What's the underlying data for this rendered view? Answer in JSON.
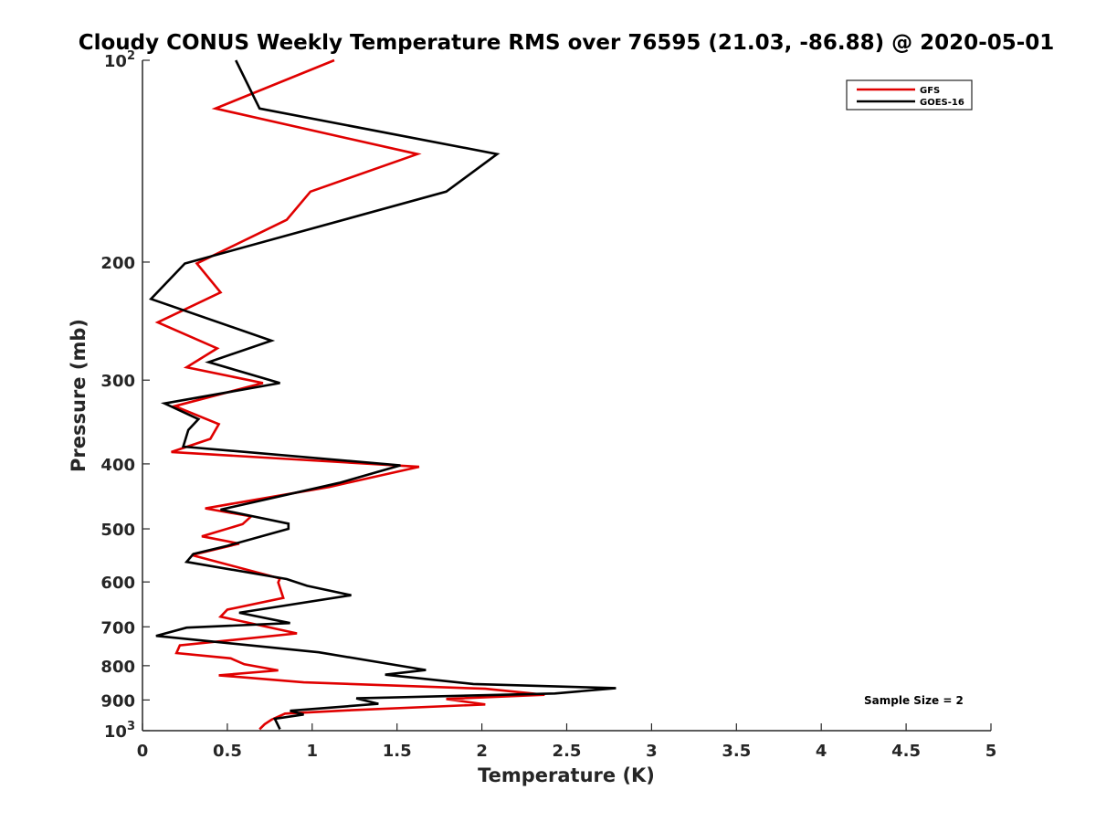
{
  "chart_data": {
    "type": "line",
    "title": "Cloudy CONUS Weekly Temperature RMS over 76595 (21.03, -86.88) @ 2020-05-01",
    "xlabel": "Temperature (K)",
    "ylabel": "Pressure (mb)",
    "xlim": [
      0,
      5
    ],
    "ylim": [
      100,
      1000
    ],
    "y_scale": "log",
    "y_reversed": true,
    "grid": false,
    "legend_position": "top-right",
    "x_ticks": [
      0,
      0.5,
      1,
      1.5,
      2,
      2.5,
      3,
      3.5,
      4,
      4.5,
      5
    ],
    "x_tick_labels": [
      "0",
      "0.5",
      "1",
      "1.5",
      "2",
      "2.5",
      "3",
      "3.5",
      "4",
      "4.5",
      "5"
    ],
    "y_ticks": [
      {
        "value": 100,
        "base": "10",
        "exp": "2"
      },
      {
        "value": 200,
        "label": "200"
      },
      {
        "value": 300,
        "label": "300"
      },
      {
        "value": 400,
        "label": "400"
      },
      {
        "value": 500,
        "label": "500"
      },
      {
        "value": 600,
        "label": "600"
      },
      {
        "value": 700,
        "label": "700"
      },
      {
        "value": 800,
        "label": "800"
      },
      {
        "value": 900,
        "label": "900"
      },
      {
        "value": 1000,
        "base": "10",
        "exp": "3"
      }
    ],
    "annotation": "Sample Size = 2",
    "series": [
      {
        "name": "GFS",
        "color": "#e00000",
        "points": [
          [
            1.13,
            100
          ],
          [
            0.43,
            118
          ],
          [
            1.62,
            138
          ],
          [
            0.99,
            157
          ],
          [
            0.85,
            173
          ],
          [
            0.32,
            201
          ],
          [
            0.46,
            222
          ],
          [
            0.09,
            246
          ],
          [
            0.44,
            269
          ],
          [
            0.26,
            287
          ],
          [
            0.71,
            303
          ],
          [
            0.19,
            328
          ],
          [
            0.45,
            349
          ],
          [
            0.4,
            367
          ],
          [
            0.17,
            384
          ],
          [
            1.63,
            404
          ],
          [
            1.1,
            433
          ],
          [
            0.37,
            466
          ],
          [
            0.64,
            479
          ],
          [
            0.59,
            492
          ],
          [
            0.35,
            513
          ],
          [
            0.57,
            526
          ],
          [
            0.29,
            547
          ],
          [
            0.81,
            593
          ],
          [
            0.8,
            601
          ],
          [
            0.83,
            634
          ],
          [
            0.5,
            660
          ],
          [
            0.46,
            676
          ],
          [
            0.91,
            716
          ],
          [
            0.22,
            746
          ],
          [
            0.2,
            766
          ],
          [
            0.52,
            780
          ],
          [
            0.6,
            796
          ],
          [
            0.8,
            813
          ],
          [
            0.45,
            827
          ],
          [
            0.95,
            847
          ],
          [
            2.02,
            866
          ],
          [
            2.37,
            884
          ],
          [
            1.79,
            897
          ],
          [
            2.02,
            914
          ],
          [
            1.23,
            932
          ],
          [
            0.84,
            943
          ],
          [
            0.76,
            963
          ],
          [
            0.72,
            978
          ],
          [
            0.69,
            995
          ]
        ]
      },
      {
        "name": "GOES-16",
        "color": "#000000",
        "points": [
          [
            0.55,
            100
          ],
          [
            0.69,
            118
          ],
          [
            2.09,
            138
          ],
          [
            1.79,
            157
          ],
          [
            0.25,
            201
          ],
          [
            0.05,
            227
          ],
          [
            0.76,
            262
          ],
          [
            0.39,
            282
          ],
          [
            0.81,
            303
          ],
          [
            0.13,
            325
          ],
          [
            0.33,
            343
          ],
          [
            0.27,
            356
          ],
          [
            0.24,
            377
          ],
          [
            1.52,
            402
          ],
          [
            1.16,
            427
          ],
          [
            0.46,
            468
          ],
          [
            0.86,
            491
          ],
          [
            0.86,
            500
          ],
          [
            0.5,
            530
          ],
          [
            0.3,
            545
          ],
          [
            0.26,
            560
          ],
          [
            0.85,
            594
          ],
          [
            0.97,
            608
          ],
          [
            1.23,
            628
          ],
          [
            0.57,
            667
          ],
          [
            0.87,
            691
          ],
          [
            0.26,
            702
          ],
          [
            0.08,
            722
          ],
          [
            1.04,
            764
          ],
          [
            1.67,
            812
          ],
          [
            1.43,
            825
          ],
          [
            1.95,
            852
          ],
          [
            2.79,
            864
          ],
          [
            2.43,
            880
          ],
          [
            1.26,
            895
          ],
          [
            1.39,
            912
          ],
          [
            0.87,
            934
          ],
          [
            0.95,
            946
          ],
          [
            0.78,
            960
          ],
          [
            0.81,
            995
          ]
        ]
      }
    ]
  }
}
